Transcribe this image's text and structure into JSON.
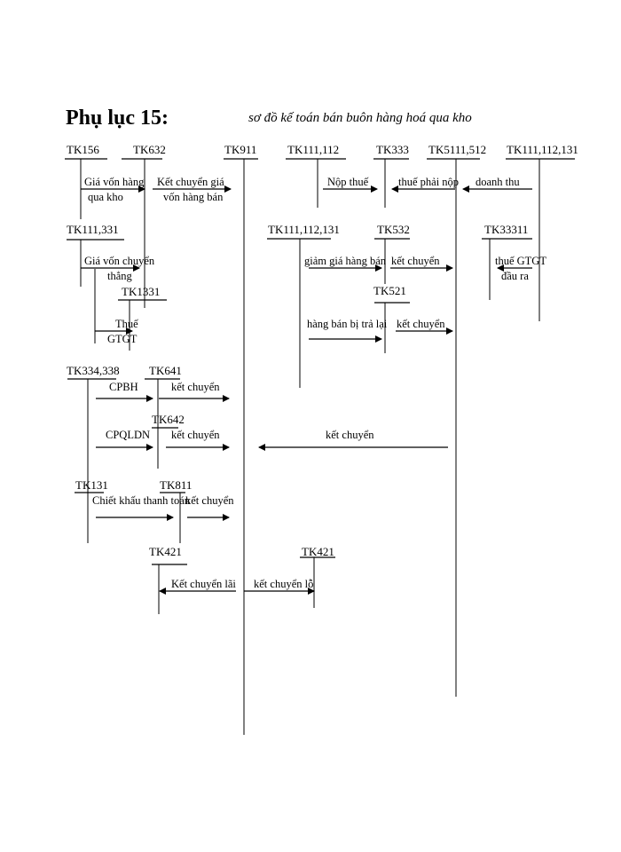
{
  "title": "Phụ lục 15:",
  "subtitle": "sơ đồ kế toán bán buôn hàng hoá qua kho",
  "accounts": {
    "tk156": "TK156",
    "tk632": "TK632",
    "tk911": "TK911",
    "tk111_112": "TK111,112",
    "tk333": "TK333",
    "tk5111_512": "TK5111,512",
    "tk111_112_131_a": "TK111,112,131",
    "tk111_331": "TK111,331",
    "tk1331": "TK1331",
    "tk111_112_131_b": "TK111,112,131",
    "tk532": "TK532",
    "tk521": "TK521",
    "tk33311": "TK33311",
    "tk334_338": "TK334,338",
    "tk641": "TK641",
    "tk642": "TK642",
    "tk131": "TK131",
    "tk811": "TK811",
    "tk421_a": "TK421",
    "tk421_b": "TK421"
  },
  "flows": {
    "gia_von_1": "Giá vốn hàng",
    "gia_von_2": "qua kho",
    "ket_chuyen_gia_1": "Kết chuyển giá",
    "ket_chuyen_gia_2": "vốn hàng bán",
    "nop_thue": "Nộp thuế",
    "thue_phai_nop": "thuế phải nộp",
    "doanh_thu": "doanh thu",
    "gia_von_chuyen_1": "Giá vốn chuyển",
    "gia_von_chuyen_2": "thẳng",
    "thue_gtgt_1": "Thuế",
    "thue_gtgt_2": "GTGT",
    "giam_gia": "giảm giá hàng bán",
    "ket_chuyen_532": "kết chuyển",
    "thue_gtgt_dau_ra_1": "thuế GTGT",
    "thue_gtgt_dau_ra_2": "đầu ra",
    "hang_ban_tra_lai": "hàng bán bị trả lại",
    "ket_chuyen_521": "kết chuyển",
    "cpbh": "CPBH",
    "ket_chuyen_641": "kết chuyển",
    "cpqldn": "CPQLDN",
    "ket_chuyen_642": "kết chuyển",
    "ket_chuyen_dt": "kết chuyển",
    "chiet_khau": "Chiết khấu thanh toán",
    "ket_chuyen_811": "kết chuyển",
    "ket_chuyen_lai": "Kết chuyển lãi",
    "ket_chuyen_lo": "kết chuyển lỗ"
  }
}
